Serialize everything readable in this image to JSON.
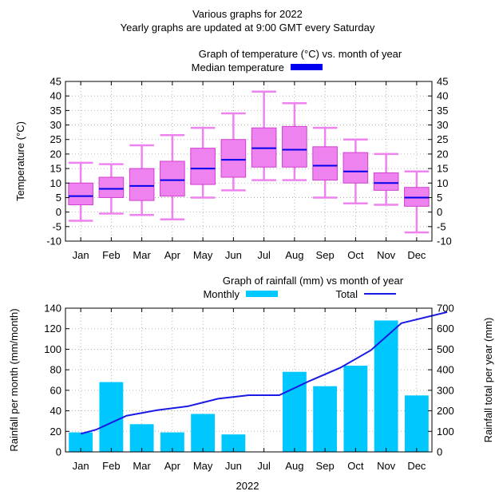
{
  "header": {
    "title": "Various graphs for 2022",
    "subtitle": "Yearly graphs are updated at 9:00 GMT every Saturday"
  },
  "colors": {
    "box_fill": "#ee82ee",
    "whisker": "#ee82ee",
    "median": "#0000ee",
    "bar": "#00c8ff",
    "total_line": "#1a1ae6"
  },
  "chart_data": [
    {
      "type": "box",
      "title": "Graph of temperature (°C) vs. month of year",
      "legend": "Median temperature",
      "ylabel": "Temperature (°C)",
      "ylim": [
        -10,
        45
      ],
      "yticks": [
        "-10",
        "-5",
        "0",
        "5",
        "10",
        "15",
        "20",
        "25",
        "30",
        "35",
        "40",
        "45"
      ],
      "categories": [
        "Jan",
        "Feb",
        "Mar",
        "Apr",
        "May",
        "Jun",
        "Jul",
        "Aug",
        "Sep",
        "Oct",
        "Nov",
        "Dec"
      ],
      "min": [
        -3,
        -0.5,
        -1,
        -2.5,
        5,
        7.5,
        11,
        11,
        5,
        3,
        2.5,
        -7
      ],
      "q1": [
        2.5,
        5,
        4,
        5.5,
        9.5,
        12,
        15.5,
        15.5,
        11,
        10,
        7.5,
        2
      ],
      "median": [
        5.5,
        8,
        9,
        11,
        15,
        18,
        22,
        21.5,
        16,
        14,
        10,
        5
      ],
      "q3": [
        10,
        12,
        15,
        17.5,
        22,
        25,
        29,
        29.5,
        22.5,
        20.5,
        13.5,
        8.5
      ],
      "max": [
        17,
        16.5,
        23,
        26.5,
        29,
        34,
        41.5,
        37.5,
        29,
        25,
        20,
        14
      ],
      "grid": true,
      "legend_position": "top-right"
    },
    {
      "type": "bar+line",
      "title": "Graph of rainfall (mm) vs month of year",
      "xlabel": "2022",
      "ylabel": "Rainfall per month (mm/month)",
      "y2label": "Rainfall total per year (mm)",
      "ylim": [
        0,
        140
      ],
      "y2lim": [
        0,
        700
      ],
      "yticks": [
        "0",
        "20",
        "40",
        "60",
        "80",
        "100",
        "120",
        "140"
      ],
      "y2ticks": [
        "0",
        "100",
        "200",
        "300",
        "400",
        "500",
        "600",
        "700"
      ],
      "categories": [
        "Jan",
        "Feb",
        "Mar",
        "Apr",
        "May",
        "Jun",
        "Jul",
        "Aug",
        "Sep",
        "Oct",
        "Nov",
        "Dec"
      ],
      "series": [
        {
          "name": "Monthly",
          "type": "bar",
          "axis": "y",
          "values": [
            19,
            68,
            27,
            19,
            37,
            17,
            0,
            78,
            64,
            84,
            128,
            55
          ]
        },
        {
          "name": "Total",
          "type": "line",
          "axis": "y2",
          "x": [
            0.5,
            1,
            2,
            3,
            4,
            5,
            6,
            7,
            8,
            9,
            10,
            11,
            12.5
          ],
          "values": [
            88,
            108,
            176,
            203,
            222,
            259,
            276,
            276,
            346,
            410,
            495,
            627,
            681
          ]
        }
      ],
      "grid": true,
      "legend_position": "top"
    }
  ]
}
